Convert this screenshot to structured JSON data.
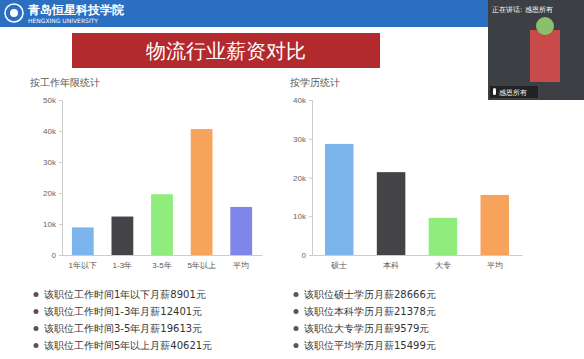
{
  "header": {
    "school": "青岛恒星科技学院",
    "school_en": "HENGXING UNIVERSITY",
    "title": "物流行业薪资对比"
  },
  "video": {
    "speaking": "正在讲话: 感恩所有",
    "name": "感恩所有"
  },
  "chart_data": [
    {
      "type": "bar",
      "title": "按工作年限统计",
      "categories": [
        "1年以下",
        "1-3年",
        "3-5年",
        "5年以上",
        "平均"
      ],
      "values": [
        8901,
        12401,
        19613,
        40621,
        15499
      ],
      "colors": [
        "#7cb5ec",
        "#434348",
        "#90ed7d",
        "#f7a35c",
        "#8085e9"
      ],
      "ylim": [
        0,
        50000
      ],
      "yticks": [
        0,
        {
          "value": 10000,
          "label": "10k"
        },
        {
          "value": 20000,
          "label": "20k"
        },
        {
          "value": 30000,
          "label": "30k"
        },
        {
          "value": 40000,
          "label": "40k"
        },
        {
          "value": 50000,
          "label": "50k"
        }
      ],
      "grid": false,
      "annotations": [
        "该职位工作时间1年以下月薪8901元",
        "该职位工作时间1-3年月薪12401元",
        "该职位工作时间3-5年月薪19613元",
        "该职位工作时间5年以上月薪40621元"
      ]
    },
    {
      "type": "bar",
      "title": "按学历统计",
      "categories": [
        "硕士",
        "本科",
        "大专",
        "平均"
      ],
      "values": [
        28666,
        21378,
        9579,
        15499
      ],
      "colors": [
        "#7cb5ec",
        "#434348",
        "#90ed7d",
        "#f7a35c"
      ],
      "ylim": [
        0,
        40000
      ],
      "yticks": [
        0,
        {
          "value": 10000,
          "label": "10k"
        },
        {
          "value": 20000,
          "label": "20k"
        },
        {
          "value": 30000,
          "label": "30k"
        },
        {
          "value": 40000,
          "label": "40k"
        }
      ],
      "grid": false,
      "annotations": [
        "该职位硕士学历月薪28666元",
        "该职位本科学历月薪21378元",
        "该职位大专学历月薪9579元",
        "该职位平均学历月薪15499元"
      ]
    }
  ]
}
